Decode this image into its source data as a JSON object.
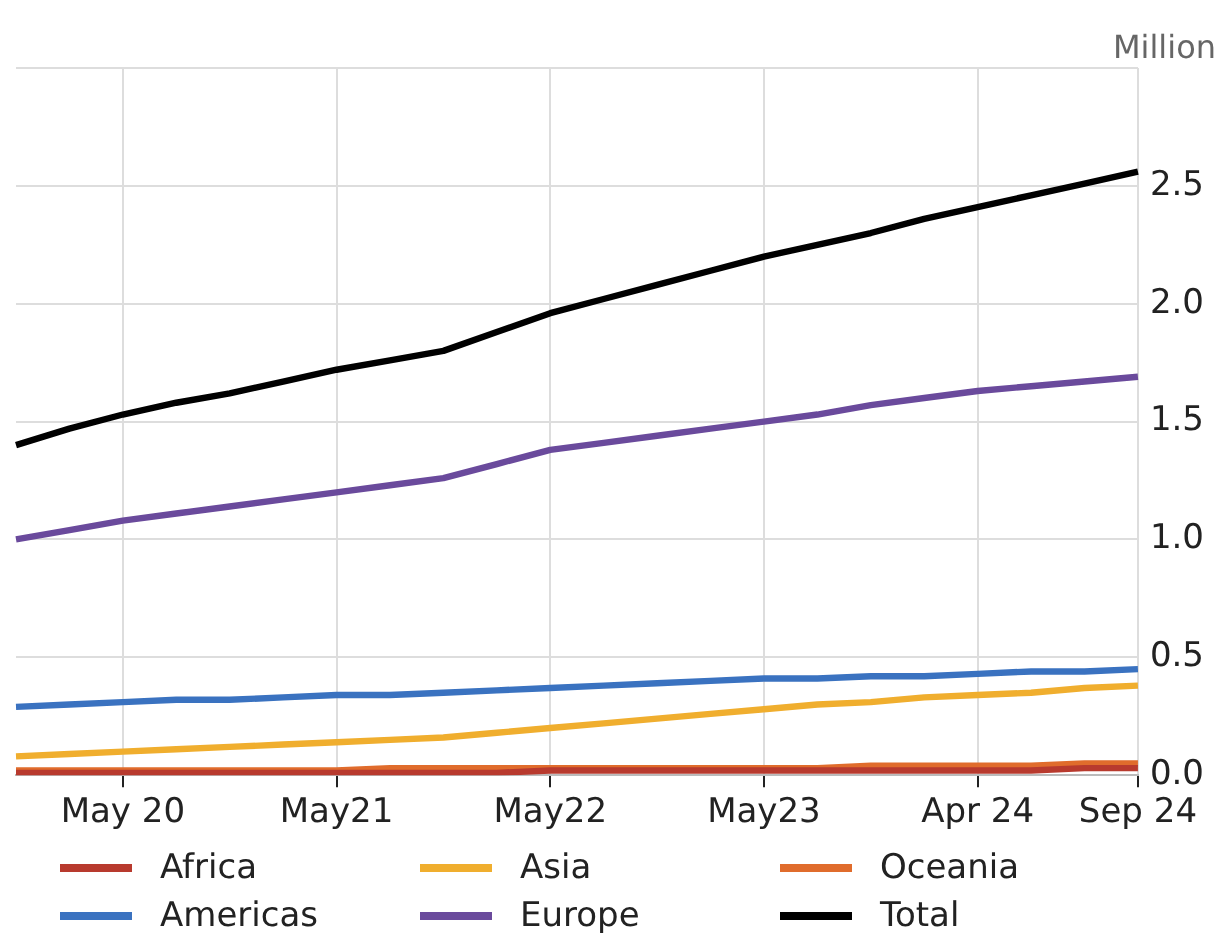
{
  "chart_data": {
    "type": "line",
    "ylabel": "Million",
    "categories": [
      null,
      null,
      "May 20",
      null,
      null,
      null,
      "May21",
      null,
      null,
      null,
      "May22",
      null,
      null,
      null,
      "May23",
      null,
      null,
      null,
      "Apr 24",
      null,
      null,
      "Sep 24"
    ],
    "ylim": [
      0,
      3
    ],
    "yticks": [
      {
        "value": 0,
        "label": "0.0"
      },
      {
        "value": 0.5,
        "label": "0.5"
      },
      {
        "value": 1,
        "label": "1.0"
      },
      {
        "value": 1.5,
        "label": "1.5"
      },
      {
        "value": 2,
        "label": "2.0"
      },
      {
        "value": 2.5,
        "label": "2.5"
      },
      {
        "value": 3,
        "label": null
      }
    ],
    "grid": true,
    "legend": "bottom",
    "marker": "none",
    "line_style": "solid",
    "series": [
      {
        "name": "Africa",
        "color": "#b83a2e",
        "values": [
          0.01,
          0.01,
          0.01,
          0.01,
          0.01,
          0.01,
          0.01,
          0.01,
          0.01,
          0.01,
          0.02,
          0.02,
          0.02,
          0.02,
          0.02,
          0.02,
          0.02,
          0.02,
          0.02,
          0.02,
          0.03,
          0.03
        ]
      },
      {
        "name": "Asia",
        "color": "#f0ae2e",
        "values": [
          0.08,
          0.09,
          0.1,
          0.11,
          0.12,
          0.13,
          0.14,
          0.15,
          0.16,
          0.18,
          0.2,
          0.22,
          0.24,
          0.26,
          0.28,
          0.3,
          0.31,
          0.33,
          0.34,
          0.35,
          0.37,
          0.38
        ]
      },
      {
        "name": "Oceania",
        "color": "#e06c2c",
        "values": [
          0.02,
          0.02,
          0.02,
          0.02,
          0.02,
          0.02,
          0.02,
          0.03,
          0.03,
          0.03,
          0.03,
          0.03,
          0.03,
          0.03,
          0.03,
          0.03,
          0.04,
          0.04,
          0.04,
          0.04,
          0.05,
          0.05
        ]
      },
      {
        "name": "Americas",
        "color": "#3a72c0",
        "values": [
          0.29,
          0.3,
          0.31,
          0.32,
          0.32,
          0.33,
          0.34,
          0.34,
          0.35,
          0.36,
          0.37,
          0.38,
          0.39,
          0.4,
          0.41,
          0.41,
          0.42,
          0.42,
          0.43,
          0.44,
          0.44,
          0.45
        ]
      },
      {
        "name": "Europe",
        "color": "#6a4a9c",
        "values": [
          1.0,
          1.04,
          1.08,
          1.11,
          1.14,
          1.17,
          1.2,
          1.23,
          1.26,
          1.32,
          1.38,
          1.41,
          1.44,
          1.47,
          1.5,
          1.53,
          1.57,
          1.6,
          1.63,
          1.65,
          1.67,
          1.69
        ]
      },
      {
        "name": "Total",
        "color": "#000000",
        "values": [
          1.4,
          1.47,
          1.53,
          1.58,
          1.62,
          1.67,
          1.72,
          1.76,
          1.8,
          1.88,
          1.96,
          2.02,
          2.08,
          2.14,
          2.2,
          2.25,
          2.3,
          2.36,
          2.41,
          2.46,
          2.51,
          2.56
        ]
      }
    ]
  }
}
